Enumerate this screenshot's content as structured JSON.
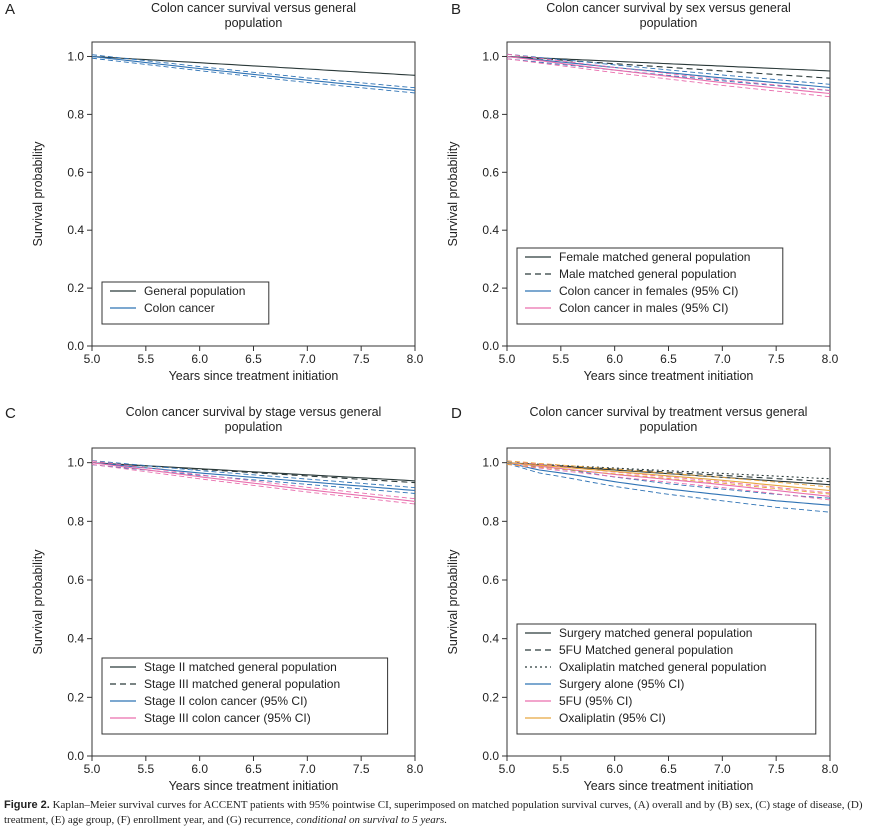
{
  "caption": {
    "label": "Figure 2.",
    "text": "Kaplan–Meier survival curves for ACCENT patients with 95% pointwise CI, superimposed on matched population survival curves, (A) overall and by (B) sex, (C) stage of disease, (D) treatment, (E) age group, (F) enrollment year, and (G) recurrence, ",
    "italic": "conditional on survival to 5 years."
  },
  "colors": {
    "black": "#2b3a3a",
    "blue": "#2f73b5",
    "pink": "#e96fae",
    "orange": "#e8a640"
  },
  "chart_data": [
    {
      "type": "line",
      "letter": "A",
      "title": [
        "Colon cancer survival versus general",
        "population"
      ],
      "xlabel": "Years since treatment initiation",
      "ylabel": "Survival probability",
      "xlim": [
        5,
        8
      ],
      "ylim": [
        0,
        1.05
      ],
      "xticks": [
        "5.0",
        "5.5",
        "6.0",
        "6.5",
        "7.0",
        "7.5",
        "8.0"
      ],
      "yticks": [
        "0.0",
        "0.2",
        "0.4",
        "0.6",
        "0.8",
        "1.0"
      ],
      "legend_position": "bottom-left",
      "series": [
        {
          "name": "General population",
          "color": "black",
          "style": "solid",
          "x": [
            5,
            8
          ],
          "y": [
            1.0,
            0.935
          ]
        },
        {
          "name": "Colon cancer",
          "color": "blue",
          "style": "solid",
          "x": [
            5,
            6,
            7,
            8
          ],
          "y": [
            1.0,
            0.958,
            0.918,
            0.883
          ],
          "ci": [
            0.006,
            0.007,
            0.008,
            0.009
          ]
        }
      ]
    },
    {
      "type": "line",
      "letter": "B",
      "title": [
        "Colon cancer survival by sex versus general",
        "population"
      ],
      "xlabel": "Years since treatment initiation",
      "ylabel": "Survival probability",
      "xlim": [
        5,
        8
      ],
      "ylim": [
        0,
        1.05
      ],
      "xticks": [
        "5.0",
        "5.5",
        "6.0",
        "6.5",
        "7.0",
        "7.5",
        "8.0"
      ],
      "yticks": [
        "0.0",
        "0.2",
        "0.4",
        "0.6",
        "0.8",
        "1.0"
      ],
      "legend_position": "bottom-left",
      "series": [
        {
          "name": "Female matched general population",
          "color": "black",
          "style": "solid",
          "x": [
            5,
            8
          ],
          "y": [
            1.0,
            0.95
          ]
        },
        {
          "name": "Male matched general population",
          "color": "black",
          "style": "dashed",
          "x": [
            5,
            8
          ],
          "y": [
            1.0,
            0.925
          ]
        },
        {
          "name": "Colon cancer in females (95% CI)",
          "color": "blue",
          "style": "solid",
          "x": [
            5,
            6,
            7,
            8
          ],
          "y": [
            1.0,
            0.962,
            0.926,
            0.893
          ],
          "ci": [
            0.008,
            0.009,
            0.01,
            0.011
          ]
        },
        {
          "name": "Colon cancer in males (95% CI)",
          "color": "pink",
          "style": "solid",
          "x": [
            5,
            6,
            7,
            8
          ],
          "y": [
            1.0,
            0.953,
            0.91,
            0.872
          ],
          "ci": [
            0.008,
            0.009,
            0.01,
            0.011
          ]
        }
      ]
    },
    {
      "type": "line",
      "letter": "C",
      "title": [
        "Colon cancer survival by stage versus general",
        "population"
      ],
      "xlabel": "Years since treatment initiation",
      "ylabel": "Survival probability",
      "xlim": [
        5,
        8
      ],
      "ylim": [
        0,
        1.05
      ],
      "xticks": [
        "5.0",
        "5.5",
        "6.0",
        "6.5",
        "7.0",
        "7.5",
        "8.0"
      ],
      "yticks": [
        "0.0",
        "0.2",
        "0.4",
        "0.6",
        "0.8",
        "1.0"
      ],
      "legend_position": "bottom-left",
      "series": [
        {
          "name": "Stage II matched general population",
          "color": "black",
          "style": "solid",
          "x": [
            5,
            8
          ],
          "y": [
            1.0,
            0.938
          ]
        },
        {
          "name": "Stage III matched general population",
          "color": "black",
          "style": "dashed",
          "x": [
            5,
            8
          ],
          "y": [
            1.0,
            0.932
          ]
        },
        {
          "name": "Stage II colon cancer (95% CI)",
          "color": "blue",
          "style": "solid",
          "x": [
            5,
            6,
            7,
            8
          ],
          "y": [
            1.0,
            0.965,
            0.935,
            0.905
          ],
          "ci": [
            0.007,
            0.008,
            0.009,
            0.01
          ]
        },
        {
          "name": "Stage III colon cancer (95% CI)",
          "color": "pink",
          "style": "solid",
          "x": [
            5,
            6,
            7,
            8
          ],
          "y": [
            1.0,
            0.952,
            0.908,
            0.868
          ],
          "ci": [
            0.006,
            0.007,
            0.008,
            0.009
          ]
        }
      ]
    },
    {
      "type": "line",
      "letter": "D",
      "title": [
        "Colon cancer survival by treatment versus general",
        "population"
      ],
      "xlabel": "Years since treatment initiation",
      "ylabel": "Survival probability",
      "xlim": [
        5,
        8
      ],
      "ylim": [
        0,
        1.05
      ],
      "xticks": [
        "5.0",
        "5.5",
        "6.0",
        "6.5",
        "7.0",
        "7.5",
        "8.0"
      ],
      "yticks": [
        "0.0",
        "0.2",
        "0.4",
        "0.6",
        "0.8",
        "1.0"
      ],
      "legend_position": "bottom-left",
      "series": [
        {
          "name": "Surgery matched general population",
          "color": "black",
          "style": "solid",
          "x": [
            5,
            8
          ],
          "y": [
            1.0,
            0.925
          ]
        },
        {
          "name": "5FU Matched general population",
          "color": "black",
          "style": "dashed",
          "x": [
            5,
            8
          ],
          "y": [
            1.0,
            0.935
          ]
        },
        {
          "name": "Oxaliplatin matched general population",
          "color": "black",
          "style": "dotted",
          "x": [
            5,
            8
          ],
          "y": [
            1.0,
            0.945
          ]
        },
        {
          "name": "Surgery alone (95% CI)",
          "color": "blue",
          "style": "solid",
          "x": [
            5,
            5.3,
            5.6,
            6,
            6.5,
            7,
            7.5,
            8
          ],
          "y": [
            1.0,
            0.975,
            0.96,
            0.935,
            0.91,
            0.89,
            0.87,
            0.855
          ],
          "ci": [
            0.003,
            0.01,
            0.014,
            0.016,
            0.018,
            0.02,
            0.022,
            0.024
          ]
        },
        {
          "name": "5FU (95% CI)",
          "color": "pink",
          "style": "solid",
          "x": [
            5,
            6,
            7,
            8
          ],
          "y": [
            1.0,
            0.96,
            0.925,
            0.885
          ],
          "ci": [
            0.006,
            0.008,
            0.01,
            0.012
          ]
        },
        {
          "name": "Oxaliplatin (95% CI)",
          "color": "orange",
          "style": "solid",
          "x": [
            5,
            6,
            7,
            8
          ],
          "y": [
            1.0,
            0.97,
            0.94,
            0.905
          ],
          "ci": [
            0.006,
            0.008,
            0.01,
            0.012
          ]
        }
      ]
    }
  ]
}
